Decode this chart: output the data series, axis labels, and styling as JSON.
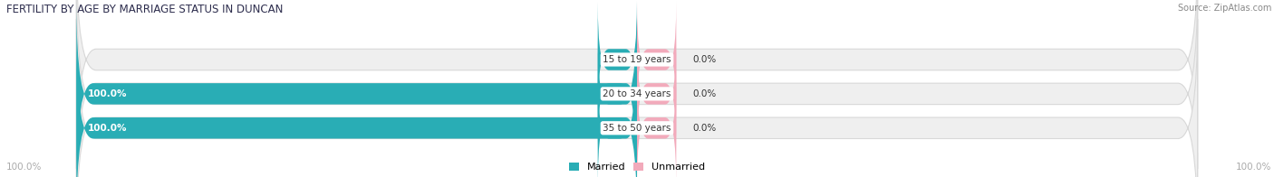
{
  "title": "FERTILITY BY AGE BY MARRIAGE STATUS IN DUNCAN",
  "source": "Source: ZipAtlas.com",
  "categories": [
    "15 to 19 years",
    "20 to 34 years",
    "35 to 50 years"
  ],
  "married_values": [
    0.0,
    100.0,
    100.0
  ],
  "unmarried_values": [
    0.0,
    0.0,
    0.0
  ],
  "married_color": "#29adb5",
  "unmarried_color": "#f2aabb",
  "bar_bg_color": "#efefef",
  "bar_border_color": "#d8d8d8",
  "bar_height": 0.62,
  "title_fontsize": 8.5,
  "label_fontsize": 7.5,
  "category_fontsize": 7.5,
  "source_fontsize": 7,
  "legend_fontsize": 8,
  "axis_label_fontsize": 7.5,
  "x_left_label": "100.0%",
  "x_right_label": "100.0%",
  "background_color": "#ffffff",
  "title_color": "#2e2e4e",
  "label_color": "#333333",
  "axis_label_color": "#aaaaaa"
}
